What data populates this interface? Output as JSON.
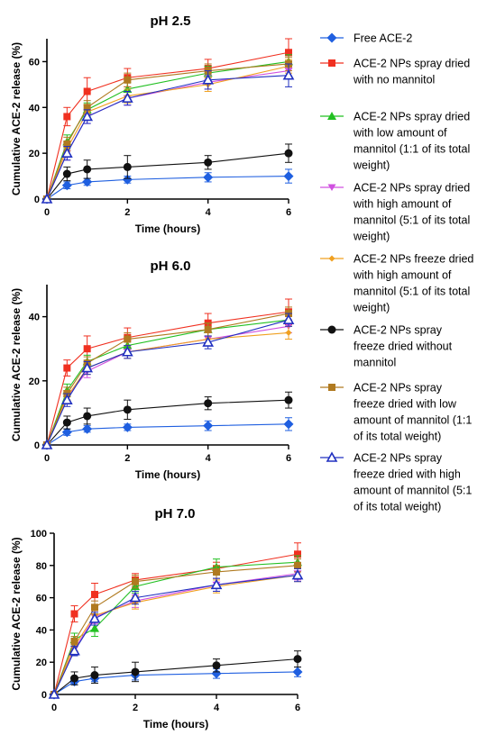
{
  "legend": [
    {
      "lines": [
        "Free ACE-2"
      ],
      "color": "#1f5fe0",
      "marker": "diamond"
    },
    {
      "lines": [
        "ACE-2 NPs spray dried",
        "with no mannitol"
      ],
      "color": "#f03020",
      "marker": "square"
    },
    {
      "lines": [
        "ACE-2 NPs spray dried",
        "with low amount of",
        "mannitol (1:1 of its total",
        "weight)"
      ],
      "color": "#22c022",
      "marker": "triangle-up"
    },
    {
      "lines": [
        "ACE-2 NPs spray dried",
        "with high amount of",
        "mannitol (5:1 of its total",
        "weight)"
      ],
      "color": "#d050e0",
      "marker": "triangle-down"
    },
    {
      "lines": [
        "ACE-2 NPs freeze dried",
        "with high amount of",
        "mannitol (5:1 of its total",
        "weight)"
      ],
      "color": "#f0a020",
      "marker": "small-diamond"
    },
    {
      "lines": [
        "ACE-2 NPs spray",
        "freeze dried without",
        "mannitol"
      ],
      "color": "#111111",
      "marker": "circle"
    },
    {
      "lines": [
        "ACE-2 NPs spray",
        "freeze dried with low",
        "amount of mannitol (1:1",
        "of its total weight)"
      ],
      "color": "#b07a20",
      "marker": "square"
    },
    {
      "lines": [
        "ACE-2 NPs spray",
        "freeze dried with high",
        "amount of mannitol (5:1",
        "of its total weight)"
      ],
      "color": "#2030c0",
      "marker": "open-triangle"
    }
  ],
  "chart_data": [
    {
      "type": "line",
      "title": "pH 2.5",
      "xlabel": "Time (hours)",
      "ylabel": "Cumulative ACE-2 release (%)",
      "x": [
        0,
        0.5,
        1,
        2,
        4,
        6
      ],
      "xticks": [
        "0",
        "2",
        "4",
        "6"
      ],
      "xlim": [
        0,
        6
      ],
      "ylim": [
        0,
        70
      ],
      "yticks": [
        "0",
        "20",
        "40",
        "60"
      ],
      "series": [
        {
          "name": "Free ACE-2",
          "values": [
            0,
            6,
            7.5,
            8.5,
            9.5,
            10
          ],
          "err": [
            0,
            1.5,
            1.5,
            1.5,
            2,
            3
          ]
        },
        {
          "name": "ACE-2 NPs spray dried with no mannitol",
          "values": [
            0,
            36,
            47,
            53,
            57,
            64
          ],
          "err": [
            0,
            4,
            6,
            4,
            4,
            6
          ]
        },
        {
          "name": "ACE-2 NPs spray dried with low amount of mannitol (1:1 of its total weight)",
          "values": [
            0,
            25,
            39,
            48,
            55,
            60
          ],
          "err": [
            0,
            3,
            3,
            3,
            3,
            3
          ]
        },
        {
          "name": "ACE-2 NPs spray dried with high amount of mannitol (5:1 of its total weight)",
          "values": [
            0,
            20,
            36,
            44,
            51,
            56
          ],
          "err": [
            0,
            3,
            3,
            3,
            3,
            3
          ]
        },
        {
          "name": "ACE-2 NPs freeze dried with high amount of mannitol (5:1 of its total weight)",
          "values": [
            0,
            22,
            38,
            45,
            50,
            58
          ],
          "err": [
            0,
            3,
            3,
            3,
            3,
            3
          ]
        },
        {
          "name": "ACE-2 NPs spray freeze dried without mannitol",
          "values": [
            0,
            11,
            13,
            14,
            16,
            20
          ],
          "err": [
            0,
            3,
            4,
            5,
            3,
            4
          ]
        },
        {
          "name": "ACE-2 NPs spray freeze dried with low amount of mannitol (1:1 of its total weight)",
          "values": [
            0,
            24,
            40,
            52,
            56,
            59
          ],
          "err": [
            0,
            3,
            3,
            3,
            3,
            3
          ]
        },
        {
          "name": "ACE-2 NPs spray freeze dried with high amount of mannitol (5:1 of its total weight)",
          "values": [
            0,
            20,
            36,
            44,
            52,
            54
          ],
          "err": [
            0,
            3,
            3,
            3,
            4,
            5
          ]
        }
      ]
    },
    {
      "type": "line",
      "title": "pH 6.0",
      "xlabel": "Time (hours)",
      "ylabel": "Cumulative ACE-2 release (%)",
      "x": [
        0,
        0.5,
        1,
        2,
        4,
        6
      ],
      "xticks": [
        "0",
        "2",
        "4",
        "6"
      ],
      "xlim": [
        0,
        6
      ],
      "ylim": [
        0,
        50
      ],
      "yticks": [
        "0",
        "20",
        "40"
      ],
      "series": [
        {
          "name": "Free ACE-2",
          "values": [
            0,
            4,
            5,
            5.5,
            6,
            6.5
          ],
          "err": [
            0,
            1,
            1,
            1,
            1.5,
            2
          ]
        },
        {
          "name": "ACE-2 NPs spray dried with no mannitol",
          "values": [
            0,
            24,
            30,
            33.5,
            38,
            41.5
          ],
          "err": [
            0,
            2.5,
            4,
            3,
            3,
            4
          ]
        },
        {
          "name": "ACE-2 NPs spray dried with low amount of mannitol (1:1 of its total weight)",
          "values": [
            0,
            17,
            26,
            31,
            36,
            39
          ],
          "err": [
            0,
            2,
            2,
            2,
            2,
            2
          ]
        },
        {
          "name": "ACE-2 NPs spray dried with high amount of mannitol (5:1 of its total weight)",
          "values": [
            0,
            15,
            23,
            29,
            33,
            37
          ],
          "err": [
            0,
            2,
            2,
            2,
            2,
            2
          ]
        },
        {
          "name": "ACE-2 NPs freeze dried with high amount of mannitol (5:1 of its total weight)",
          "values": [
            0,
            15,
            24,
            29,
            33,
            35
          ],
          "err": [
            0,
            2,
            2,
            2,
            2,
            2
          ]
        },
        {
          "name": "ACE-2 NPs spray freeze dried without mannitol",
          "values": [
            0,
            7,
            9,
            11,
            13,
            14
          ],
          "err": [
            0,
            2,
            2.5,
            3,
            2,
            2.5
          ]
        },
        {
          "name": "ACE-2 NPs spray freeze dried with low amount of mannitol (1:1 of its total weight)",
          "values": [
            0,
            16,
            25.5,
            33,
            36,
            41
          ],
          "err": [
            0,
            2,
            2,
            2,
            2,
            2
          ]
        },
        {
          "name": "ACE-2 NPs spray freeze dried with high amount of mannitol (5:1 of its total weight)",
          "values": [
            0,
            14,
            24,
            29,
            32,
            39
          ],
          "err": [
            0,
            2,
            2,
            2,
            2,
            2
          ]
        }
      ]
    },
    {
      "type": "line",
      "title": "pH 7.0",
      "xlabel": "Time (hours)",
      "ylabel": "Cumulative ACE-2 release (%)",
      "x": [
        0,
        0.5,
        1,
        2,
        4,
        6
      ],
      "xticks": [
        "0",
        "2",
        "4",
        "6"
      ],
      "xlim": [
        0,
        6
      ],
      "ylim": [
        0,
        100
      ],
      "yticks": [
        "0",
        "20",
        "40",
        "60",
        "80",
        "100"
      ],
      "series": [
        {
          "name": "Free ACE-2",
          "values": [
            0,
            8,
            10,
            12,
            13,
            14
          ],
          "err": [
            0,
            2,
            2,
            3,
            3,
            3
          ]
        },
        {
          "name": "ACE-2 NPs spray dried with no mannitol",
          "values": [
            0,
            50,
            62,
            71,
            78,
            87
          ],
          "err": [
            0,
            5,
            7,
            4,
            4,
            7
          ]
        },
        {
          "name": "ACE-2 NPs spray dried with low amount of mannitol (1:1 of its total weight)",
          "values": [
            0,
            34,
            41,
            67,
            79,
            82
          ],
          "err": [
            0,
            4,
            5,
            4,
            5,
            4
          ]
        },
        {
          "name": "ACE-2 NPs spray dried with high amount of mannitol (5:1 of its total weight)",
          "values": [
            0,
            28,
            48,
            58,
            68,
            75
          ],
          "err": [
            0,
            3,
            4,
            4,
            4,
            4
          ]
        },
        {
          "name": "ACE-2 NPs freeze dried with high amount of mannitol (5:1 of its total weight)",
          "values": [
            0,
            30,
            49,
            57,
            67,
            74
          ],
          "err": [
            0,
            3,
            4,
            4,
            4,
            4
          ]
        },
        {
          "name": "ACE-2 NPs spray freeze dried without mannitol",
          "values": [
            0,
            10,
            12,
            14,
            18,
            22
          ],
          "err": [
            0,
            4,
            5,
            6,
            4,
            5
          ]
        },
        {
          "name": "ACE-2 NPs spray freeze dried with low amount of mannitol (1:1 of its total weight)",
          "values": [
            0,
            33,
            54,
            70,
            76,
            80
          ],
          "err": [
            0,
            3,
            4,
            4,
            4,
            4
          ]
        },
        {
          "name": "ACE-2 NPs spray freeze dried with high amount of mannitol (5:1 of its total weight)",
          "values": [
            0,
            27,
            47,
            60,
            68,
            74
          ],
          "err": [
            0,
            3,
            4,
            4,
            4,
            4
          ]
        }
      ]
    }
  ]
}
